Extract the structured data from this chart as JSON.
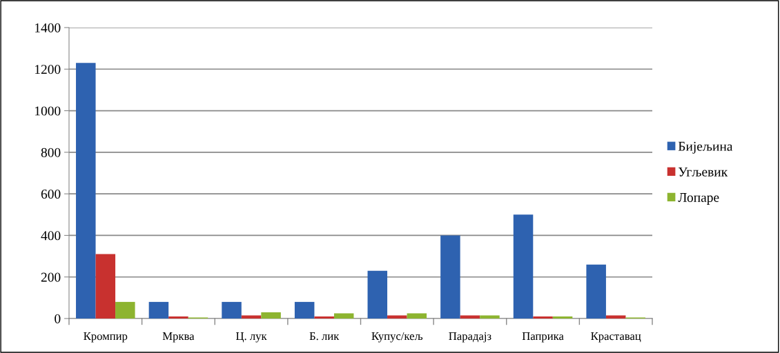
{
  "chart_data": {
    "type": "bar",
    "categories": [
      "Кромпир",
      "Мрква",
      "Ц. лук",
      "Б. лик",
      "Купус/кељ",
      "Парадајз",
      "Паприка",
      "Краставац"
    ],
    "series": [
      {
        "name": "Бијељина",
        "color": "#2e62b0",
        "values": [
          1230,
          80,
          80,
          80,
          230,
          400,
          500,
          260
        ]
      },
      {
        "name": "Угљевик",
        "color": "#c8312f",
        "values": [
          310,
          10,
          15,
          10,
          15,
          15,
          10,
          15
        ]
      },
      {
        "name": "Лопаре",
        "color": "#8db430",
        "values": [
          80,
          5,
          30,
          25,
          25,
          15,
          10,
          5
        ]
      }
    ],
    "ylim": [
      0,
      1400
    ],
    "yticks": [
      0,
      200,
      400,
      600,
      800,
      1000,
      1200,
      1400
    ],
    "grid": "y",
    "legend": "right"
  }
}
